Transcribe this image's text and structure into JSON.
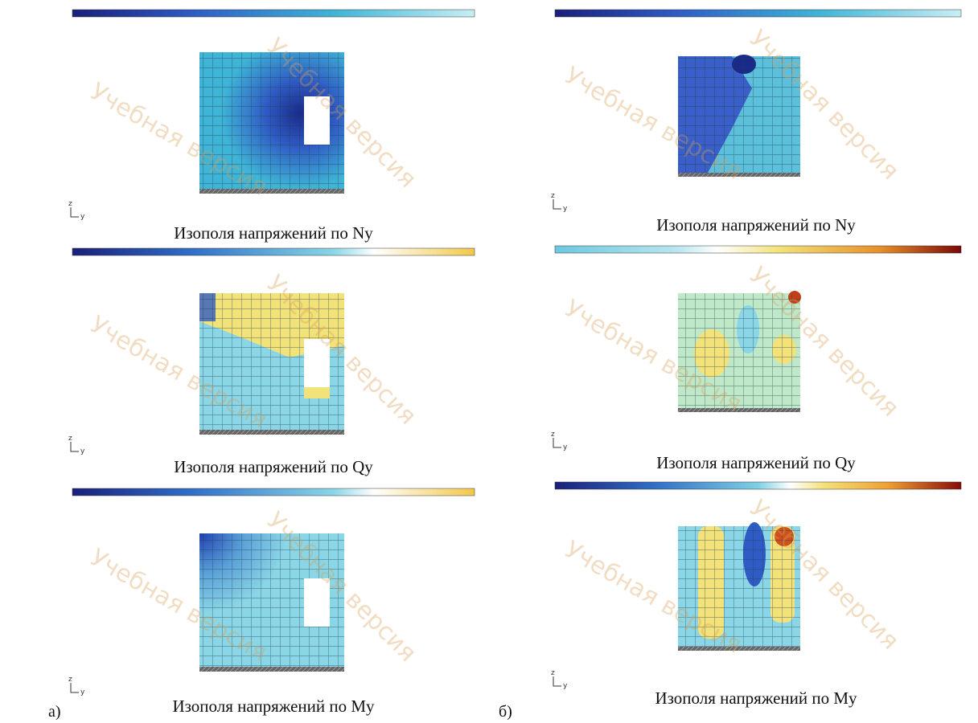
{
  "figure": {
    "left": {
      "label": "а)",
      "captions": [
        "Изополя напряжений по Ny",
        "Изополя напряжений по Qy",
        "Изополя напряжений по My"
      ]
    },
    "right": {
      "label": "б)",
      "captions": [
        "Изополя напряжений по Ny",
        "Изополя напряжений по Qy",
        "Изополя напряжений по My"
      ]
    },
    "watermark": "Учебная версия",
    "axis": {
      "z": "z",
      "y": "y"
    }
  }
}
